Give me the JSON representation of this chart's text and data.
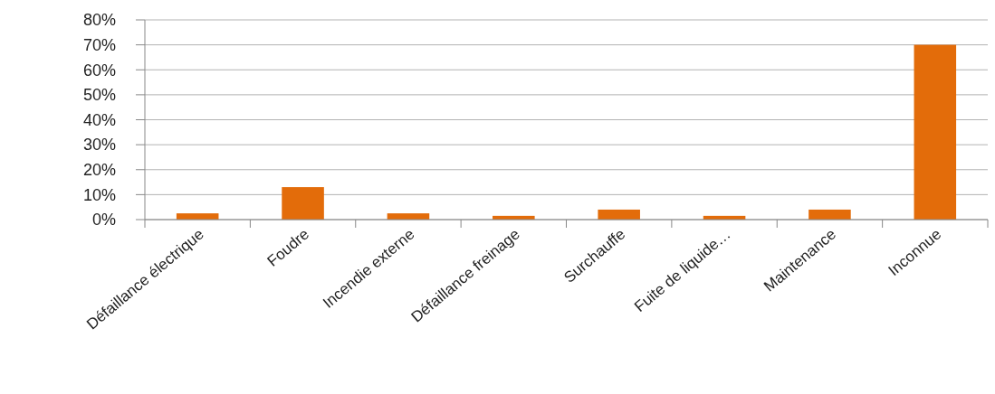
{
  "chart_data": {
    "type": "bar",
    "categories": [
      "Défaillance électrique",
      "Foudre",
      "Incendie externe",
      "Défaillance freinage",
      "Surchauffe",
      "Fuite de liquide…",
      "Maintenance",
      "Inconnue"
    ],
    "values": [
      2.5,
      13,
      2.5,
      1.5,
      4,
      1.5,
      4,
      70
    ],
    "color": "#e36c0a",
    "ylim": [
      0,
      80
    ],
    "yticks": [
      {
        "value": 0,
        "label": "0%"
      },
      {
        "value": 10,
        "label": "10%"
      },
      {
        "value": 20,
        "label": "20%"
      },
      {
        "value": 30,
        "label": "30%"
      },
      {
        "value": 40,
        "label": "40%"
      },
      {
        "value": 50,
        "label": "50%"
      },
      {
        "value": 60,
        "label": "60%"
      },
      {
        "value": 70,
        "label": "70%"
      },
      {
        "value": 80,
        "label": "80%"
      }
    ],
    "grid": "y"
  }
}
